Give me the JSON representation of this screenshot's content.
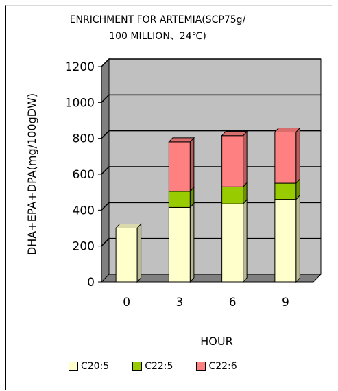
{
  "chart_data": {
    "type": "bar",
    "stacked": true,
    "three_d": true,
    "title_line1": "ENRICHMENT FOR ARTEMIA(SCP75g/",
    "title_line2": "100 MILLION、24℃)",
    "xlabel": "HOUR",
    "ylabel": "DHA+EPA+DPA(mg/100gDW)",
    "categories": [
      "0",
      "3",
      "6",
      "9"
    ],
    "ylim": [
      0,
      1200
    ],
    "yticks": [
      "0",
      "200",
      "400",
      "600",
      "800",
      "1000",
      "1200"
    ],
    "grid": true,
    "legend_position": "bottom",
    "series": [
      {
        "name": "C20:5",
        "color": "#ffffcc",
        "values": [
          300,
          415,
          435,
          460
        ]
      },
      {
        "name": "C22:5",
        "color": "#99cc00",
        "values": [
          0,
          90,
          95,
          90
        ]
      },
      {
        "name": "C22:6",
        "color": "#ff8080",
        "values": [
          0,
          275,
          285,
          285
        ]
      }
    ]
  }
}
